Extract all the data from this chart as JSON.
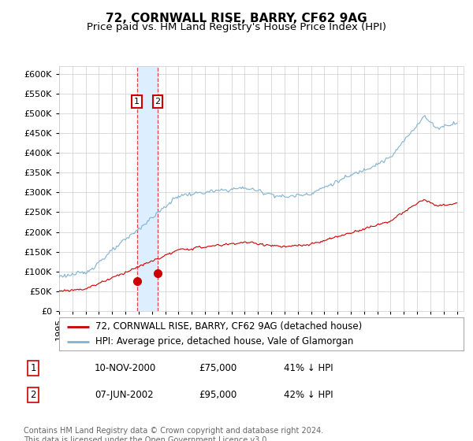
{
  "title": "72, CORNWALL RISE, BARRY, CF62 9AG",
  "subtitle": "Price paid vs. HM Land Registry's House Price Index (HPI)",
  "yticks": [
    0,
    50000,
    100000,
    150000,
    200000,
    250000,
    300000,
    350000,
    400000,
    450000,
    500000,
    550000,
    600000
  ],
  "xlim_start": 1995.0,
  "xlim_end": 2025.5,
  "ylim_min": 0,
  "ylim_max": 620000,
  "purchase1_date": 2000.86,
  "purchase1_price": 75000,
  "purchase2_date": 2002.44,
  "purchase2_price": 95000,
  "red_line_color": "#cc0000",
  "blue_line_color": "#7fb3d3",
  "highlight_color": "#ddeeff",
  "grid_color": "#cccccc",
  "legend_label_red": "72, CORNWALL RISE, BARRY, CF62 9AG (detached house)",
  "legend_label_blue": "HPI: Average price, detached house, Vale of Glamorgan",
  "table_entries": [
    {
      "num": 1,
      "date": "10-NOV-2000",
      "price": "£75,000",
      "hpi": "41% ↓ HPI"
    },
    {
      "num": 2,
      "date": "07-JUN-2002",
      "price": "£95,000",
      "hpi": "42% ↓ HPI"
    }
  ],
  "footnote": "Contains HM Land Registry data © Crown copyright and database right 2024.\nThis data is licensed under the Open Government Licence v3.0.",
  "title_fontsize": 11,
  "subtitle_fontsize": 9.5,
  "tick_fontsize": 8,
  "legend_fontsize": 8.5,
  "table_fontsize": 8.5,
  "footnote_fontsize": 7
}
